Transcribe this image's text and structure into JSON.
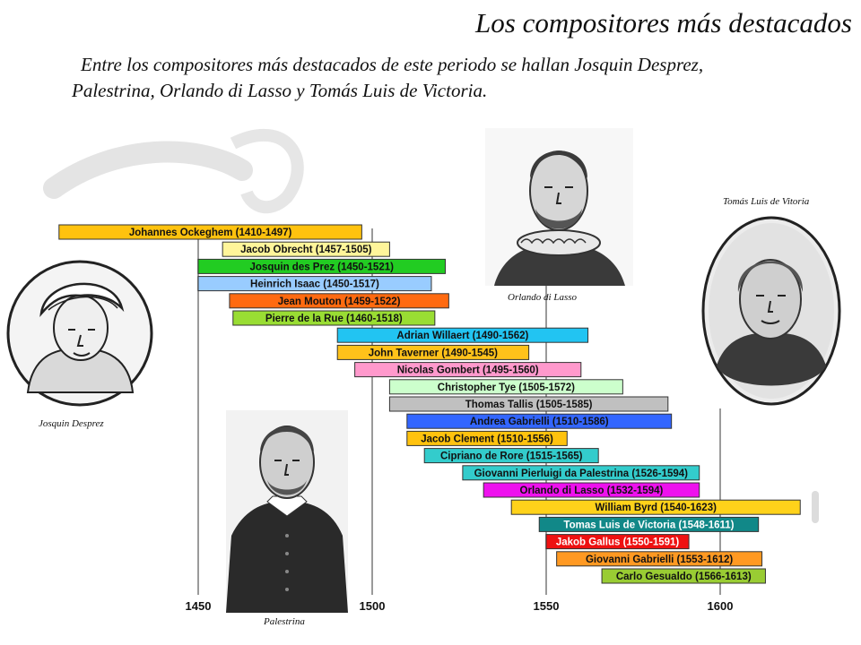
{
  "title": "Los compositores más destacados",
  "intro": "Entre los compositores más destacados de este periodo se hallan Josquin Desprez, Palestrina, Orlando di Lasso y Tomás Luis de Victoria.",
  "portraits": {
    "desprez": "Josquin Desprez",
    "palestrina": "Palestrina",
    "lasso": "Orlando di Lasso",
    "victoria": "Tomás Luis de Vitoria"
  },
  "chart_data": {
    "type": "bar",
    "orientation": "horizontal",
    "xlim": [
      1450,
      1625
    ],
    "x_ticks": [
      1450,
      1500,
      1550,
      1600
    ],
    "grid": true,
    "bars": [
      {
        "label": "Johannes Ockeghem (1410-1497)",
        "start": 1410,
        "end": 1497,
        "color": "#FFC20E",
        "text_color": "#111111"
      },
      {
        "label": "Jacob Obrecht (1457-1505)",
        "start": 1457,
        "end": 1505,
        "color": "#FFF59A",
        "text_color": "#111111"
      },
      {
        "label": "Josquin des Prez (1450-1521)",
        "start": 1450,
        "end": 1521,
        "color": "#22CC22",
        "text_color": "#111111"
      },
      {
        "label": "Heinrich Isaac (1450-1517)",
        "start": 1450,
        "end": 1517,
        "color": "#99CCFF",
        "text_color": "#111111"
      },
      {
        "label": "Jean Mouton (1459-1522)",
        "start": 1459,
        "end": 1522,
        "color": "#FF6A10",
        "text_color": "#111111"
      },
      {
        "label": "Pierre de la Rue (1460-1518)",
        "start": 1460,
        "end": 1518,
        "color": "#99DD33",
        "text_color": "#111111"
      },
      {
        "label": "Adrian Willaert (1490-1562)",
        "start": 1490,
        "end": 1562,
        "color": "#22C4F2",
        "text_color": "#111111"
      },
      {
        "label": "John Taverner (1490-1545)",
        "start": 1490,
        "end": 1545,
        "color": "#FFC21A",
        "text_color": "#111111"
      },
      {
        "label": "Nicolas Gombert (1495-1560)",
        "start": 1495,
        "end": 1560,
        "color": "#FF99CC",
        "text_color": "#111111"
      },
      {
        "label": "Christopher Tye (1505-1572)",
        "start": 1505,
        "end": 1572,
        "color": "#CCFFCC",
        "text_color": "#111111"
      },
      {
        "label": "Thomas Tallis (1505-1585)",
        "start": 1505,
        "end": 1585,
        "color": "#C0C0C0",
        "text_color": "#111111"
      },
      {
        "label": "Andrea Gabrielli (1510-1586)",
        "start": 1510,
        "end": 1586,
        "color": "#3366FF",
        "text_color": "#111111"
      },
      {
        "label": "Jacob Clement (1510-1556)",
        "start": 1510,
        "end": 1556,
        "color": "#FFC20E",
        "text_color": "#111111"
      },
      {
        "label": "Cipriano de Rore (1515-1565)",
        "start": 1515,
        "end": 1565,
        "color": "#33CCCC",
        "text_color": "#111111"
      },
      {
        "label": "Giovanni Pierluigi da Palestrina (1526-1594)",
        "start": 1526,
        "end": 1594,
        "color": "#33CCCC",
        "text_color": "#111111"
      },
      {
        "label": "Orlando di Lasso (1532-1594)",
        "start": 1532,
        "end": 1594,
        "color": "#EE11EE",
        "text_color": "#111111"
      },
      {
        "label": "William Byrd (1540-1623)",
        "start": 1540,
        "end": 1623,
        "color": "#FFD21A",
        "text_color": "#111111"
      },
      {
        "label": "Tomas Luis de Victoria (1548-1611)",
        "start": 1548,
        "end": 1611,
        "color": "#118888",
        "text_color": "#ffffff"
      },
      {
        "label": "Jakob Gallus (1550-1591)",
        "start": 1550,
        "end": 1591,
        "color": "#EE1111",
        "text_color": "#ffffff"
      },
      {
        "label": "Giovanni Gabrielli (1553-1612)",
        "start": 1553,
        "end": 1612,
        "color": "#FF9922",
        "text_color": "#111111"
      },
      {
        "label": "Carlo Gesualdo (1566-1613)",
        "start": 1566,
        "end": 1613,
        "color": "#99CC33",
        "text_color": "#111111"
      }
    ]
  }
}
